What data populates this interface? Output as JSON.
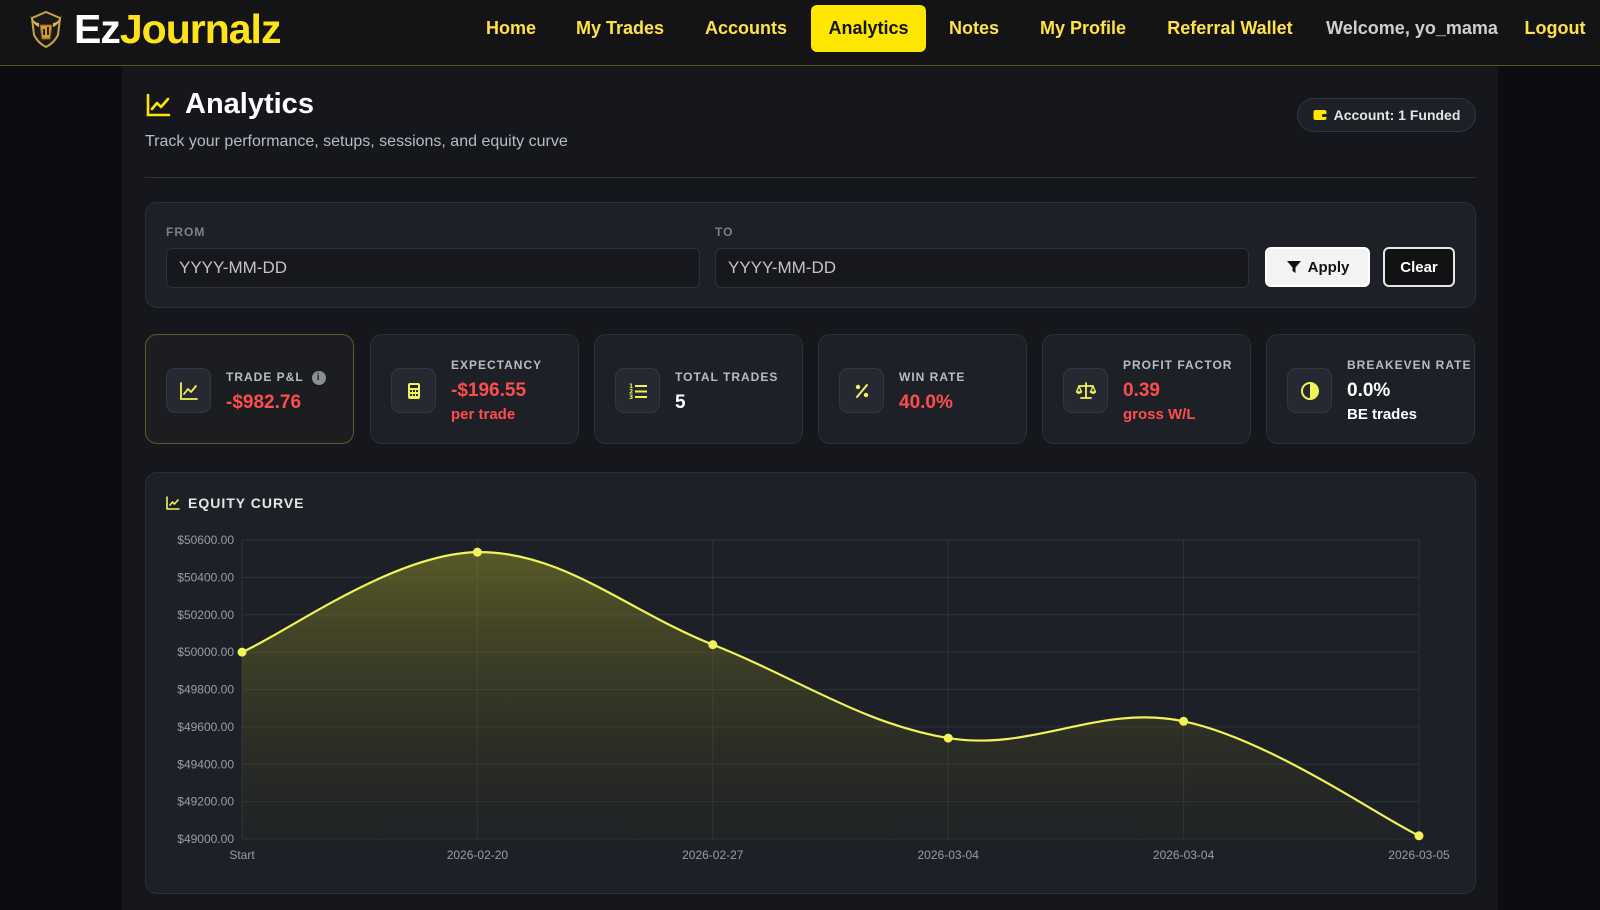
{
  "brand": {
    "part1": "Ez",
    "part2": "Journalz"
  },
  "nav": {
    "items": [
      {
        "label": "Home",
        "active": false
      },
      {
        "label": "My Trades",
        "active": false
      },
      {
        "label": "Accounts",
        "active": false
      },
      {
        "label": "Analytics",
        "active": true
      },
      {
        "label": "Notes",
        "active": false
      },
      {
        "label": "My Profile",
        "active": false
      },
      {
        "label": "Referral Wallet",
        "active": false
      }
    ],
    "welcome": "Welcome, yo_mama",
    "logout": "Logout"
  },
  "page": {
    "title": "Analytics",
    "subtitle": "Track your performance, setups, sessions, and equity curve",
    "account_badge": "Account: 1 Funded"
  },
  "filter": {
    "from_label": "FROM",
    "to_label": "TO",
    "from_placeholder": "YYYY-MM-DD",
    "to_placeholder": "YYYY-MM-DD",
    "apply_label": "Apply",
    "clear_label": "Clear"
  },
  "stats": [
    {
      "label": "TRADE P&L",
      "value": "-$982.76",
      "sub": "",
      "icon": "chart-line-icon",
      "tone": "red"
    },
    {
      "label": "EXPECTANCY",
      "value": "-$196.55",
      "sub": "per trade",
      "icon": "calculator-icon",
      "tone": "red"
    },
    {
      "label": "TOTAL TRADES",
      "value": "5",
      "sub": "",
      "icon": "list-ol-icon",
      "tone": "white"
    },
    {
      "label": "WIN RATE",
      "value": "40.0%",
      "sub": "",
      "icon": "percent-icon",
      "tone": "red"
    },
    {
      "label": "PROFIT FACTOR",
      "value": "0.39",
      "sub": "gross W/L",
      "icon": "scale-icon",
      "tone": "red"
    },
    {
      "label": "BREAKEVEN RATE",
      "value": "0.0%",
      "sub": "BE trades",
      "icon": "half-circle-icon",
      "tone": "white"
    }
  ],
  "colors": {
    "accent": "#ffe600",
    "line": "#f2f25a",
    "negative": "#ff4d4d"
  },
  "chart_data": {
    "type": "area",
    "title": "EQUITY CURVE",
    "categories": [
      "Start",
      "2026-02-20",
      "2026-02-27",
      "2026-03-04",
      "2026-03-04",
      "2026-03-05"
    ],
    "values": [
      50000.0,
      50535.0,
      50040.0,
      49540.0,
      49630.0,
      49017.24
    ],
    "yticks": [
      50600,
      50400,
      50200,
      50000,
      49800,
      49600,
      49400,
      49200,
      49000
    ],
    "ylim": [
      49000,
      50600
    ],
    "y_format": "$",
    "grid": true,
    "legend": "none"
  }
}
